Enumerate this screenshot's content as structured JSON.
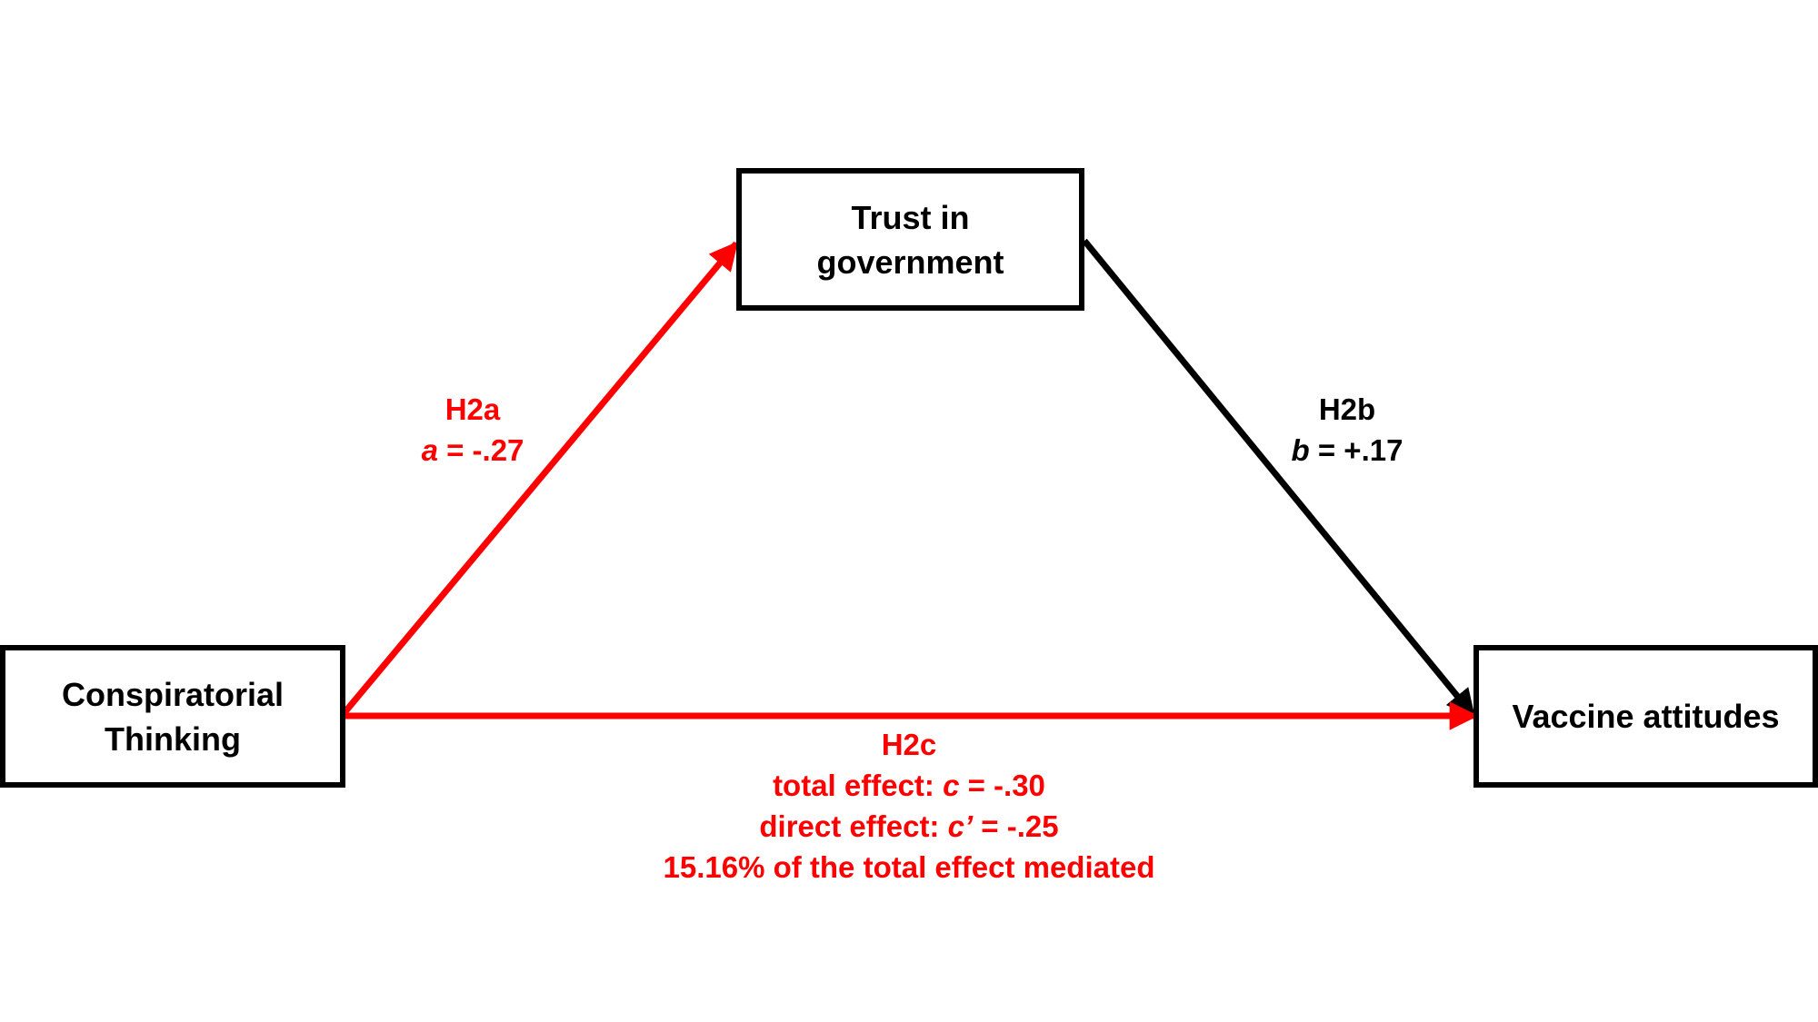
{
  "colors": {
    "highlight": "#ff0000",
    "default": "#000000"
  },
  "nodes": {
    "trust": {
      "line1": "Trust in",
      "line2": "government"
    },
    "conspiratorial": {
      "line1": "Conspiratorial",
      "line2": "Thinking"
    },
    "vaccine": {
      "line1": "Vaccine attitudes"
    }
  },
  "paths": {
    "a": {
      "hypothesis": "H2a",
      "coef_symbol": "a",
      "coef_value": " = -.27",
      "color": "#ff0000"
    },
    "b": {
      "hypothesis": "H2b",
      "coef_symbol": "b",
      "coef_value": " = +.17",
      "color": "#000000"
    },
    "c": {
      "hypothesis": "H2c",
      "total_prefix": "total effect: ",
      "total_symbol": "c",
      "total_value": " = -.30",
      "direct_prefix": "direct effect: ",
      "direct_symbol": "c’",
      "direct_value": " = -.25",
      "mediated": "15.16% of the total effect mediated",
      "color": "#ff0000"
    }
  }
}
